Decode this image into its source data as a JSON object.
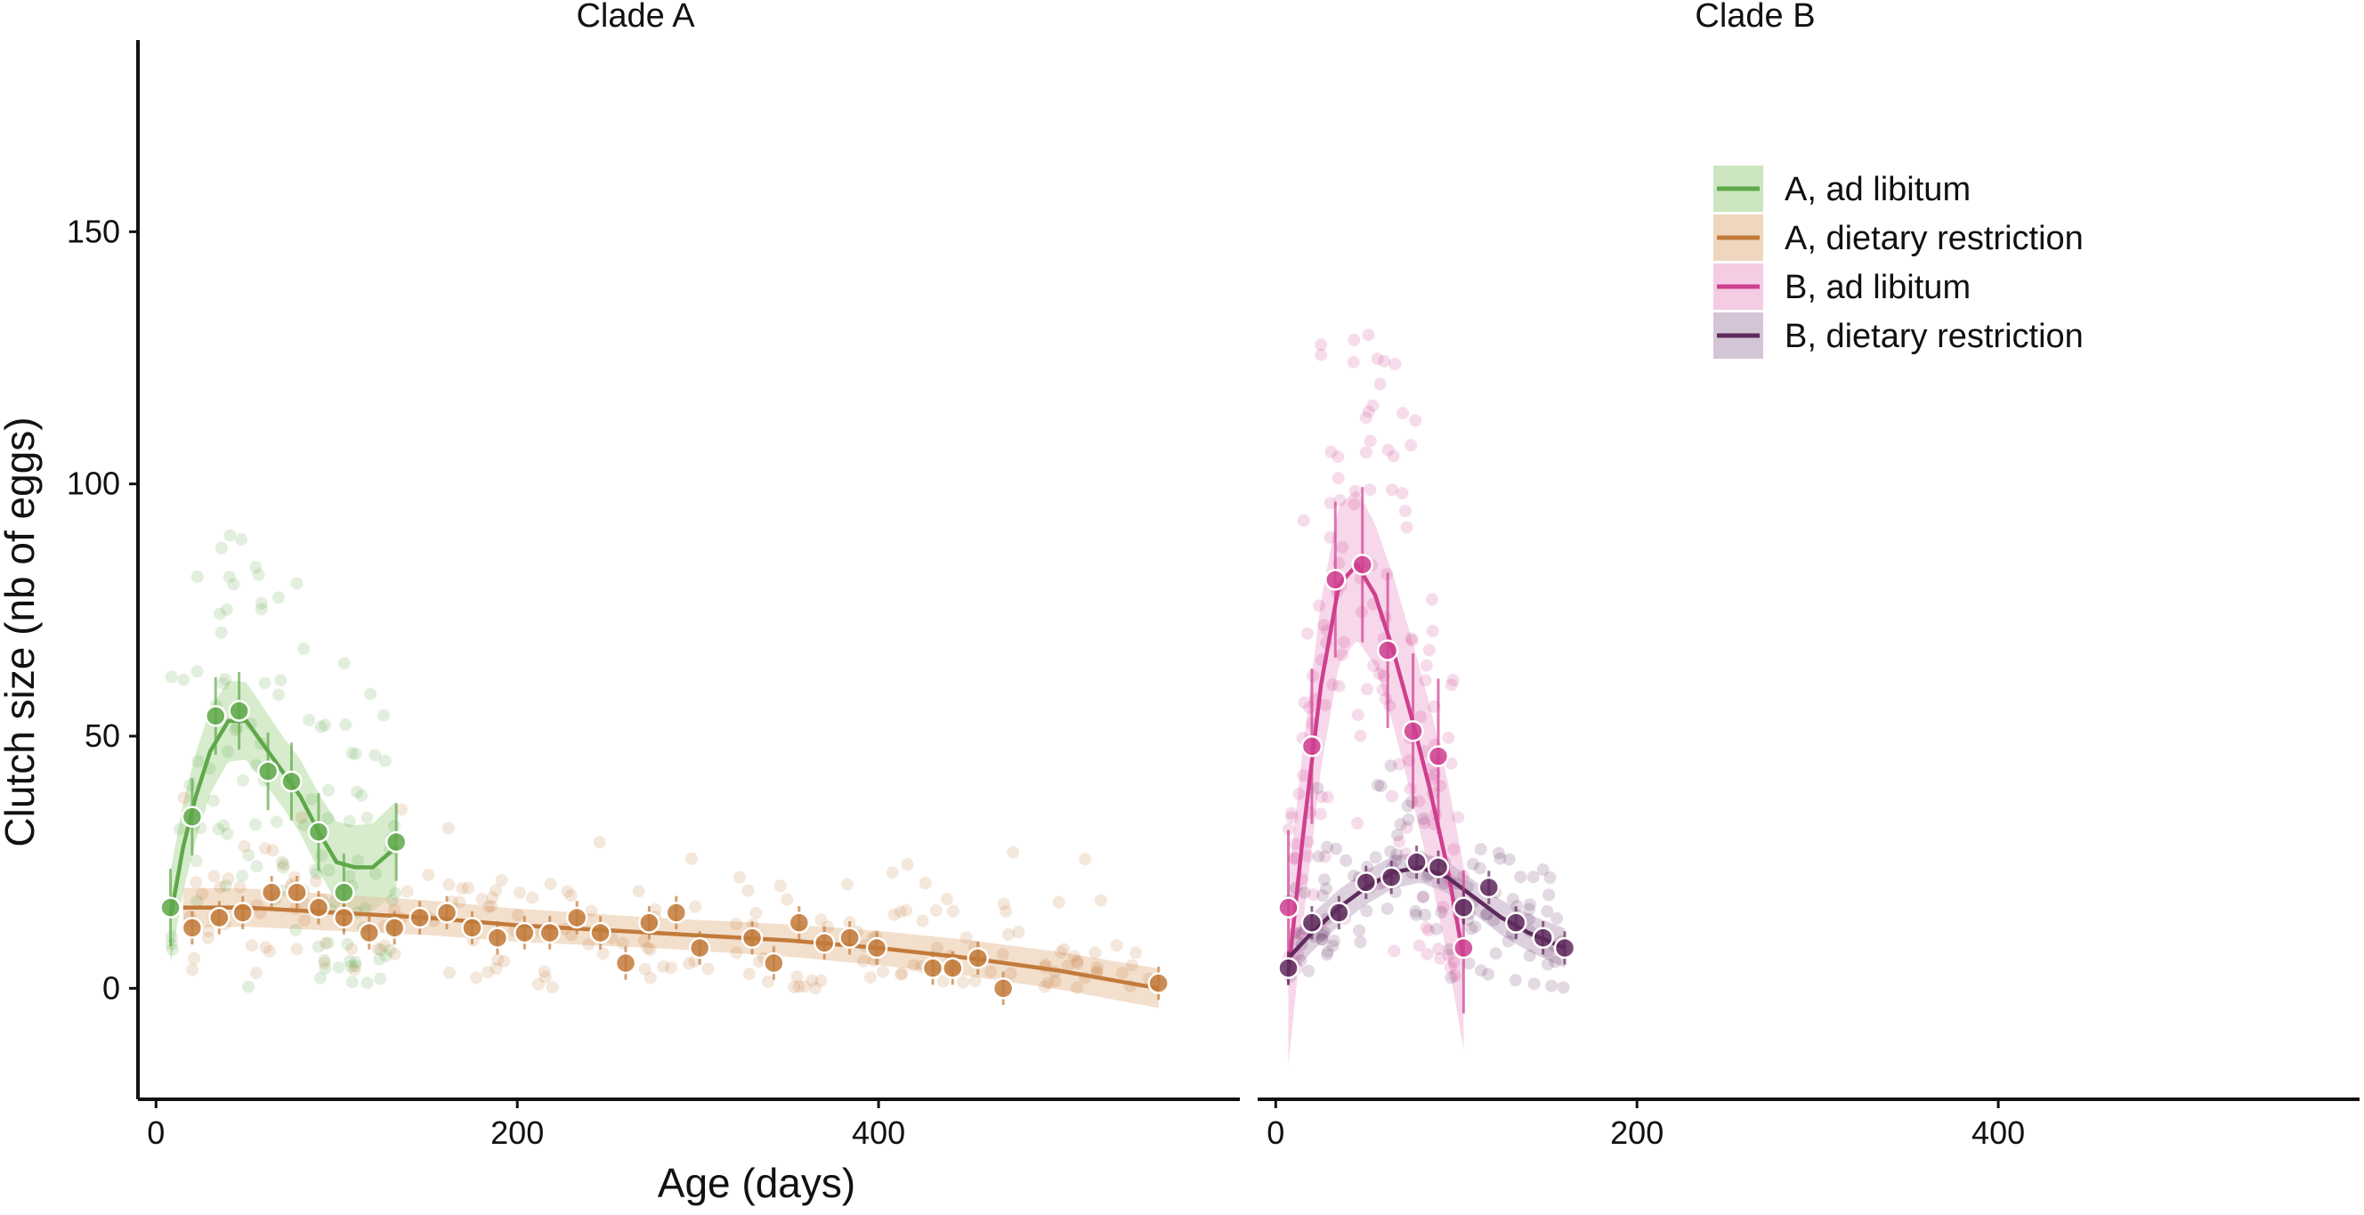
{
  "chart_data": {
    "type": "scatter",
    "title": "",
    "xlabel": "Age (days)",
    "ylabel": "Clutch size (nb of eggs)",
    "xlim": [
      -10,
      600
    ],
    "ylim": [
      -22,
      188
    ],
    "xticks": [
      0,
      200,
      400
    ],
    "yticks": [
      0,
      50,
      100,
      150
    ],
    "xtick_labels": [
      "0",
      "200",
      "400"
    ],
    "ytick_labels": [
      "0",
      "50",
      "100",
      "150"
    ],
    "legend_position": "top-right",
    "grid": false,
    "panels": [
      {
        "id": "A",
        "title": "Clade A",
        "series": [
          {
            "name": "A, ad libitum",
            "color": "#5fa84a",
            "band_color": "#b5dca3",
            "points": [
              [
                8,
                16
              ],
              [
                20,
                34
              ],
              [
                33,
                54
              ],
              [
                46,
                55
              ],
              [
                62,
                43
              ],
              [
                75,
                41
              ],
              [
                90,
                31
              ],
              [
                104,
                19
              ],
              [
                133,
                29
              ]
            ],
            "smooth": [
              [
                8,
                14
              ],
              [
                15,
                28
              ],
              [
                22,
                38
              ],
              [
                30,
                47
              ],
              [
                40,
                53
              ],
              [
                50,
                53
              ],
              [
                60,
                48
              ],
              [
                70,
                43
              ],
              [
                80,
                38
              ],
              [
                90,
                31
              ],
              [
                100,
                25
              ],
              [
                110,
                24
              ],
              [
                120,
                24
              ],
              [
                133,
                28
              ]
            ],
            "band_width": 7,
            "raw_spread": 22,
            "raw_count": 120
          },
          {
            "name": "A, dietary restriction",
            "color": "#c27a3a",
            "band_color": "#e8c4a3",
            "points": [
              [
                20,
                12
              ],
              [
                35,
                14
              ],
              [
                48,
                15
              ],
              [
                64,
                19
              ],
              [
                78,
                19
              ],
              [
                90,
                16
              ],
              [
                104,
                14
              ],
              [
                118,
                11
              ],
              [
                132,
                12
              ],
              [
                146,
                14
              ],
              [
                161,
                15
              ],
              [
                175,
                12
              ],
              [
                189,
                10
              ],
              [
                204,
                11
              ],
              [
                218,
                11
              ],
              [
                233,
                14
              ],
              [
                246,
                11
              ],
              [
                260,
                5
              ],
              [
                273,
                13
              ],
              [
                288,
                15
              ],
              [
                301,
                8
              ],
              [
                330,
                10
              ],
              [
                342,
                5
              ],
              [
                356,
                13
              ],
              [
                370,
                9
              ],
              [
                384,
                10
              ],
              [
                399,
                8
              ],
              [
                430,
                4
              ],
              [
                441,
                4
              ],
              [
                455,
                6
              ],
              [
                469,
                0
              ],
              [
                555,
                1
              ]
            ],
            "smooth": [
              [
                15,
                16
              ],
              [
                50,
                16
              ],
              [
                100,
                15
              ],
              [
                150,
                14
              ],
              [
                200,
                12.5
              ],
              [
                250,
                11.5
              ],
              [
                300,
                10.5
              ],
              [
                350,
                9.5
              ],
              [
                400,
                8
              ],
              [
                450,
                6
              ],
              [
                500,
                3.5
              ],
              [
                555,
                0
              ]
            ],
            "band_width": 3,
            "raw_spread": 8,
            "raw_count": 200
          }
        ]
      },
      {
        "id": "B",
        "title": "Clade B",
        "series": [
          {
            "name": "B, ad libitum",
            "color": "#cf3f8f",
            "band_color": "#f0b6d8",
            "points": [
              [
                7,
                16
              ],
              [
                20,
                48
              ],
              [
                33,
                81
              ],
              [
                48,
                84
              ],
              [
                62,
                67
              ],
              [
                76,
                51
              ],
              [
                90,
                46
              ],
              [
                104,
                8
              ]
            ],
            "smooth": [
              [
                7,
                3
              ],
              [
                15,
                30
              ],
              [
                25,
                60
              ],
              [
                35,
                80
              ],
              [
                45,
                84
              ],
              [
                55,
                78
              ],
              [
                65,
                67
              ],
              [
                75,
                54
              ],
              [
                85,
                40
              ],
              [
                95,
                24
              ],
              [
                104,
                6
              ]
            ],
            "band_width": 14,
            "raw_spread": 28,
            "raw_count": 150
          },
          {
            "name": "B, dietary restriction",
            "color": "#5e2a5c",
            "band_color": "#c2acc4",
            "points": [
              [
                7,
                4
              ],
              [
                20,
                13
              ],
              [
                35,
                15
              ],
              [
                50,
                21
              ],
              [
                64,
                22
              ],
              [
                78,
                25
              ],
              [
                90,
                24
              ],
              [
                104,
                16
              ],
              [
                118,
                20
              ],
              [
                133,
                13
              ],
              [
                148,
                10
              ],
              [
                160,
                8
              ]
            ],
            "smooth": [
              [
                7,
                6
              ],
              [
                20,
                11
              ],
              [
                35,
                16
              ],
              [
                50,
                20
              ],
              [
                65,
                23
              ],
              [
                80,
                24
              ],
              [
                95,
                22
              ],
              [
                110,
                18
              ],
              [
                125,
                14
              ],
              [
                140,
                11
              ],
              [
                160,
                8
              ]
            ],
            "band_width": 3,
            "raw_spread": 9,
            "raw_count": 120
          }
        ]
      }
    ]
  }
}
